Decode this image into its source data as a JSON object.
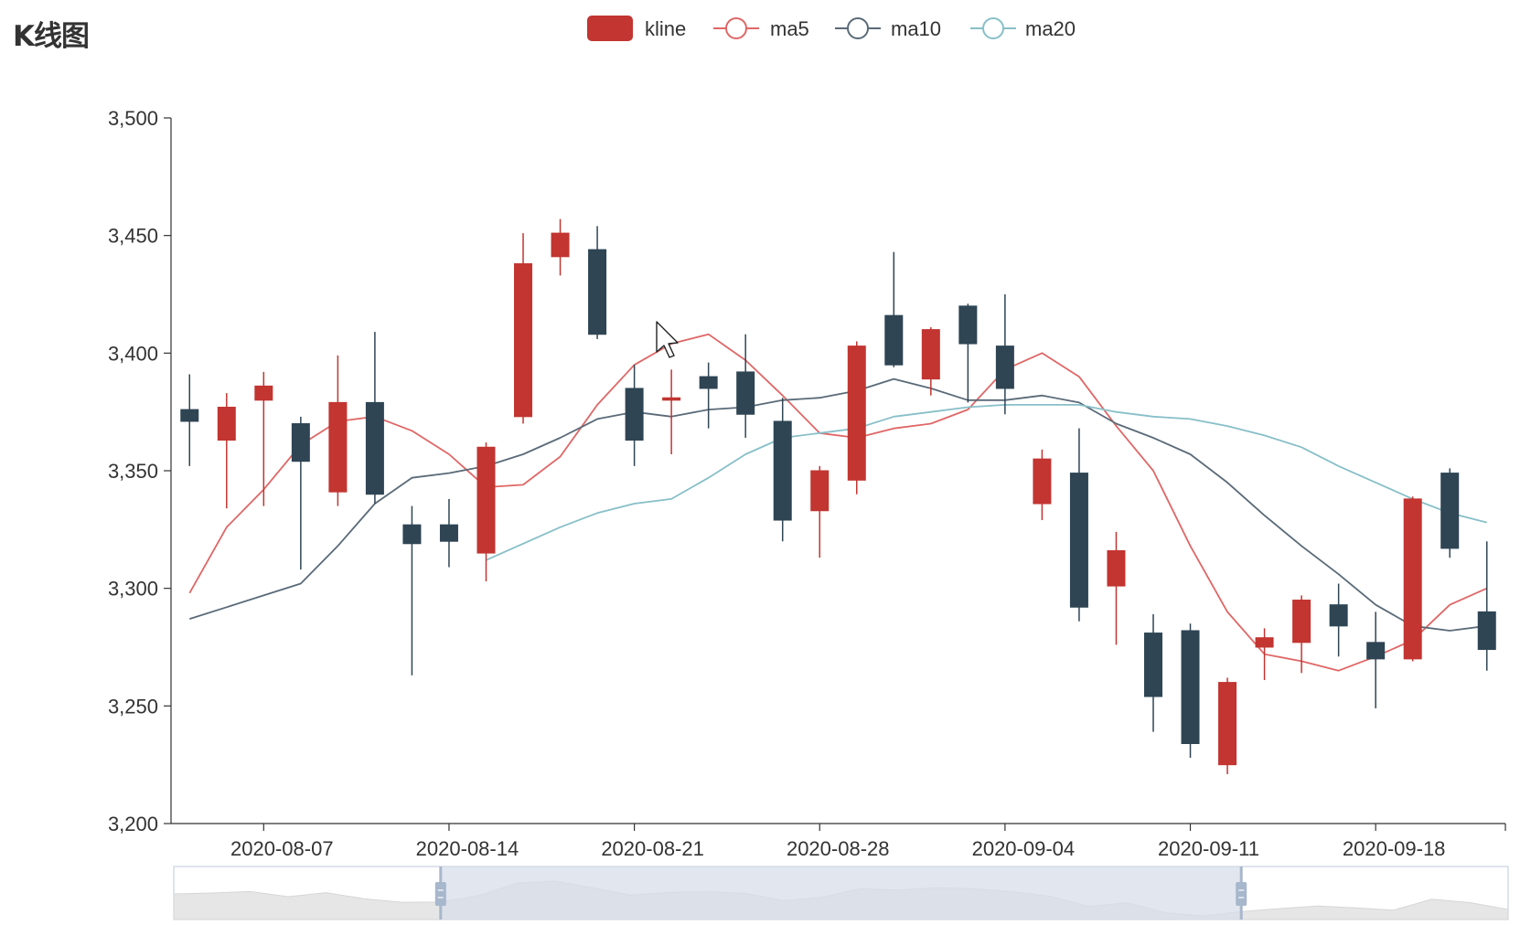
{
  "title": "K线图",
  "colors": {
    "up": "#c23531",
    "down": "#2f4554",
    "ma5": "#e06666",
    "ma10": "#5a6a78",
    "ma20": "#87bfc8",
    "axis": "#333333",
    "dataZoomFill": "#d7dde9",
    "dataZoomBorder": "#c9d1de",
    "dataZoomShadow": "#e6e6e6",
    "dataZoomHandle": "#a7b7cc"
  },
  "legend": [
    {
      "name": "kline",
      "icon": "rounded-rect",
      "color": "#c23531"
    },
    {
      "name": "ma5",
      "icon": "line-circle",
      "color": "#e06666"
    },
    {
      "name": "ma10",
      "icon": "line-circle",
      "color": "#5a6a78"
    },
    {
      "name": "ma20",
      "icon": "line-circle",
      "color": "#87bfc8"
    }
  ],
  "chart_data": {
    "type": "candlestick",
    "title": "K线图",
    "ylim": [
      3200,
      3500
    ],
    "yticks": [
      3200,
      3250,
      3300,
      3350,
      3400,
      3450,
      3500
    ],
    "ytick_labels": [
      "3,200",
      "3,250",
      "3,300",
      "3,350",
      "3,400",
      "3,450",
      "3,500"
    ],
    "xtick_labels": [
      "2020-08-07",
      "2020-08-14",
      "2020-08-21",
      "2020-08-28",
      "2020-09-04",
      "2020-09-11",
      "2020-09-18"
    ],
    "xtick_index": [
      2.5,
      7.5,
      12.5,
      17.5,
      22.5,
      27.5,
      32.5
    ],
    "dates": [
      "2020-08-04",
      "2020-08-05",
      "2020-08-06",
      "2020-08-07",
      "2020-08-10",
      "2020-08-11",
      "2020-08-12",
      "2020-08-13",
      "2020-08-14",
      "2020-08-17",
      "2020-08-18",
      "2020-08-19",
      "2020-08-20",
      "2020-08-21",
      "2020-08-24",
      "2020-08-25",
      "2020-08-26",
      "2020-08-27",
      "2020-08-28",
      "2020-08-31",
      "2020-09-01",
      "2020-09-02",
      "2020-09-03",
      "2020-09-04",
      "2020-09-07",
      "2020-09-08",
      "2020-09-09",
      "2020-09-10",
      "2020-09-11",
      "2020-09-14",
      "2020-09-15",
      "2020-09-16",
      "2020-09-17",
      "2020-09-18",
      "2020-09-21",
      "2020-09-22"
    ],
    "kline": [
      {
        "open": 3376,
        "close": 3371,
        "low": 3352,
        "high": 3391
      },
      {
        "open": 3363,
        "close": 3377,
        "low": 3334,
        "high": 3383
      },
      {
        "open": 3380,
        "close": 3386,
        "low": 3335,
        "high": 3392
      },
      {
        "open": 3370,
        "close": 3354,
        "low": 3308,
        "high": 3373
      },
      {
        "open": 3341,
        "close": 3379,
        "low": 3335,
        "high": 3399
      },
      {
        "open": 3379,
        "close": 3340,
        "low": 3336,
        "high": 3409
      },
      {
        "open": 3327,
        "close": 3319,
        "low": 3263,
        "high": 3335
      },
      {
        "open": 3327,
        "close": 3320,
        "low": 3309,
        "high": 3338
      },
      {
        "open": 3315,
        "close": 3360,
        "low": 3303,
        "high": 3362
      },
      {
        "open": 3373,
        "close": 3438,
        "low": 3370,
        "high": 3451
      },
      {
        "open": 3441,
        "close": 3451,
        "low": 3433,
        "high": 3457
      },
      {
        "open": 3444,
        "close": 3408,
        "low": 3406,
        "high": 3454
      },
      {
        "open": 3385,
        "close": 3363,
        "low": 3352,
        "high": 3395
      },
      {
        "open": 3380,
        "close": 3381,
        "low": 3357,
        "high": 3393
      },
      {
        "open": 3390,
        "close": 3385,
        "low": 3368,
        "high": 3396
      },
      {
        "open": 3392,
        "close": 3374,
        "low": 3364,
        "high": 3408
      },
      {
        "open": 3371,
        "close": 3329,
        "low": 3320,
        "high": 3381
      },
      {
        "open": 3333,
        "close": 3350,
        "low": 3313,
        "high": 3352
      },
      {
        "open": 3346,
        "close": 3403,
        "low": 3340,
        "high": 3405
      },
      {
        "open": 3416,
        "close": 3395,
        "low": 3394,
        "high": 3443
      },
      {
        "open": 3389,
        "close": 3410,
        "low": 3382,
        "high": 3411
      },
      {
        "open": 3420,
        "close": 3404,
        "low": 3379,
        "high": 3421
      },
      {
        "open": 3403,
        "close": 3385,
        "low": 3374,
        "high": 3425
      },
      {
        "open": 3336,
        "close": 3355,
        "low": 3329,
        "high": 3359
      },
      {
        "open": 3349,
        "close": 3292,
        "low": 3286,
        "high": 3368
      },
      {
        "open": 3301,
        "close": 3316,
        "low": 3276,
        "high": 3324
      },
      {
        "open": 3281,
        "close": 3254,
        "low": 3239,
        "high": 3289
      },
      {
        "open": 3282,
        "close": 3234,
        "low": 3228,
        "high": 3285
      },
      {
        "open": 3225,
        "close": 3260,
        "low": 3221,
        "high": 3262
      },
      {
        "open": 3275,
        "close": 3279,
        "low": 3261,
        "high": 3283
      },
      {
        "open": 3277,
        "close": 3295,
        "low": 3264,
        "high": 3297
      },
      {
        "open": 3293,
        "close": 3284,
        "low": 3271,
        "high": 3302
      },
      {
        "open": 3277,
        "close": 3270,
        "low": 3249,
        "high": 3290
      },
      {
        "open": 3270,
        "close": 3338,
        "low": 3269,
        "high": 3339
      },
      {
        "open": 3349,
        "close": 3317,
        "low": 3313,
        "high": 3351
      },
      {
        "open": 3290,
        "close": 3274,
        "low": 3265,
        "high": 3320
      }
    ],
    "series": [
      {
        "name": "ma5",
        "values": [
          3298,
          3326,
          3342,
          3361,
          3371,
          3373,
          3367,
          3357,
          3343,
          3344,
          3356,
          3378,
          3395,
          3404,
          3408,
          3397,
          3382,
          3366,
          3364,
          3368,
          3370,
          3376,
          3393,
          3400,
          3390,
          3369,
          3350,
          3318,
          3290,
          3272,
          3269,
          3265,
          3271,
          3278,
          3293,
          3300
        ]
      },
      {
        "name": "ma10",
        "values": [
          3287,
          3292,
          3297,
          3302,
          3318,
          3336,
          3347,
          3349,
          3352,
          3357,
          3364,
          3372,
          3375,
          3373,
          3376,
          3377,
          3380,
          3381,
          3384,
          3389,
          3385,
          3380,
          3380,
          3382,
          3379,
          3370,
          3364,
          3357,
          3345,
          3331,
          3318,
          3306,
          3293,
          3284,
          3282,
          3284
        ]
      },
      {
        "name": "ma20",
        "values": [
          null,
          null,
          null,
          null,
          null,
          null,
          null,
          null,
          3312,
          3319,
          3326,
          3332,
          3336,
          3338,
          3347,
          3357,
          3364,
          3366,
          3368,
          3373,
          3375,
          3377,
          3378,
          3378,
          3378,
          3375,
          3373,
          3372,
          3369,
          3365,
          3360,
          3352,
          3345,
          3338,
          3332,
          3328
        ]
      }
    ],
    "datazoom": {
      "start_percent": 20,
      "end_percent": 80
    }
  }
}
